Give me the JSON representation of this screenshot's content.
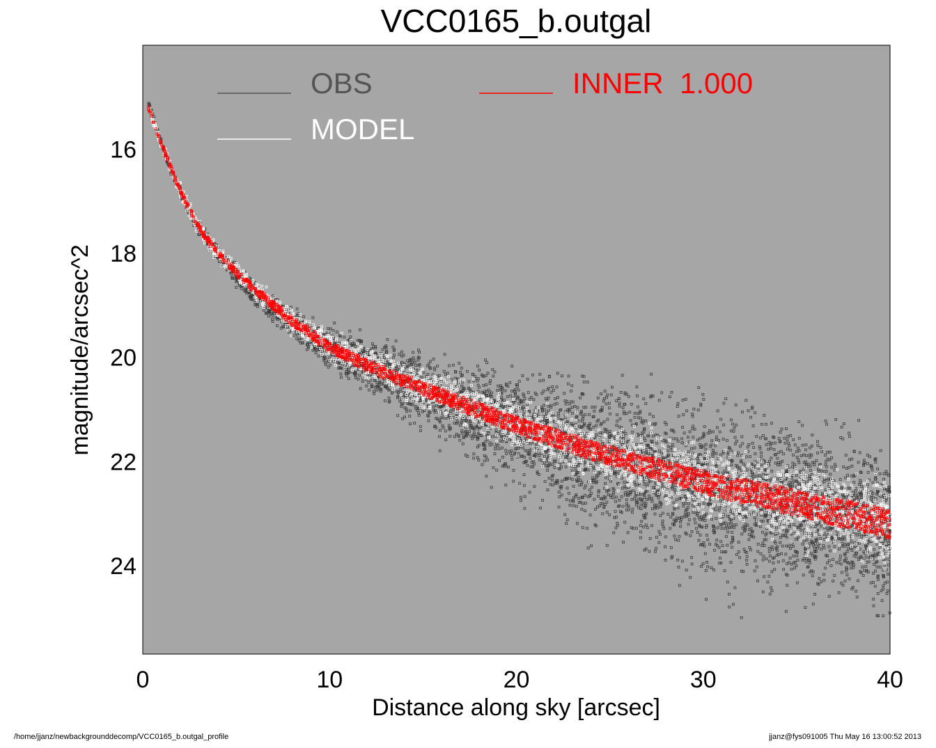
{
  "chart_data": {
    "type": "scatter",
    "title": "VCC0165_b.outgal",
    "xlabel": "Distance along sky [arcsec]",
    "ylabel": "magnitude/arcsec^2",
    "xlim": [
      0,
      40
    ],
    "ylim": [
      25.7,
      14.0
    ],
    "y_inverted": true,
    "xticks": [
      0,
      10,
      20,
      30,
      40
    ],
    "yticks": [
      16,
      18,
      20,
      22,
      24
    ],
    "background_color": "#a6a6a6",
    "grid": false,
    "legend_placement": "top, inside plot area",
    "legend": [
      {
        "label": "OBS",
        "color": "#555555"
      },
      {
        "label": "MODEL",
        "color": "#ffffff"
      },
      {
        "label": "INNER  1.000",
        "color": "#ff0000"
      }
    ],
    "series": [
      {
        "name": "OBS",
        "color": "#3a3a3a",
        "marker": "square",
        "x": [
          0.3,
          0.5,
          1.0,
          1.5,
          2.0,
          2.5,
          3.0,
          4.0,
          5.0,
          6.0,
          7.0,
          8.0,
          9.0,
          10.0,
          12.0,
          14.0,
          16.0,
          18.0,
          20.0,
          22.0,
          24.0,
          26.0,
          28.0,
          30.0,
          32.0,
          34.0,
          36.0,
          38.0,
          40.0
        ],
        "y": [
          15.1,
          15.3,
          15.9,
          16.4,
          16.8,
          17.2,
          17.5,
          18.0,
          18.4,
          18.8,
          19.1,
          19.3,
          19.6,
          19.8,
          20.1,
          20.5,
          20.8,
          21.1,
          21.4,
          21.6,
          21.9,
          22.1,
          22.3,
          22.5,
          22.7,
          22.8,
          23.0,
          23.1,
          23.3
        ],
        "scatter_width_mag": [
          0.05,
          0.05,
          0.1,
          0.1,
          0.15,
          0.15,
          0.2,
          0.25,
          0.3,
          0.35,
          0.4,
          0.45,
          0.5,
          0.6,
          0.8,
          1.0,
          1.2,
          1.4,
          1.7,
          2.0,
          2.2,
          2.4,
          2.5,
          2.6,
          2.6,
          2.6,
          2.6,
          2.6,
          2.6
        ]
      },
      {
        "name": "MODEL",
        "color": "#ffffff",
        "marker": "square",
        "x": [
          0.3,
          1.0,
          2.0,
          3.0,
          4.0,
          6.0,
          8.0,
          10.0,
          12.0,
          15.0,
          20.0,
          25.0,
          30.0,
          35.0,
          40.0
        ],
        "y": [
          15.2,
          15.9,
          16.8,
          17.5,
          18.0,
          18.7,
          19.3,
          19.8,
          20.1,
          20.6,
          21.3,
          21.9,
          22.4,
          22.8,
          23.2
        ]
      },
      {
        "name": "INNER  1.000",
        "color": "#ff0000",
        "marker": "square",
        "x": [
          0.3,
          1.0,
          2.0,
          3.0,
          4.0,
          6.0,
          8.0,
          10.0,
          12.0,
          15.0,
          20.0,
          25.0,
          30.0,
          35.0,
          40.0
        ],
        "y": [
          15.2,
          15.9,
          16.8,
          17.5,
          18.0,
          18.7,
          19.3,
          19.8,
          20.15,
          20.6,
          21.3,
          21.9,
          22.4,
          22.8,
          23.2
        ]
      }
    ]
  },
  "footer": {
    "left": "/home/jjanz/newbackgrounddecomp/VCC0165_b.outgal_profile",
    "right": "jjanz@fys091005  Thu May 16 13:00:52 2013"
  }
}
